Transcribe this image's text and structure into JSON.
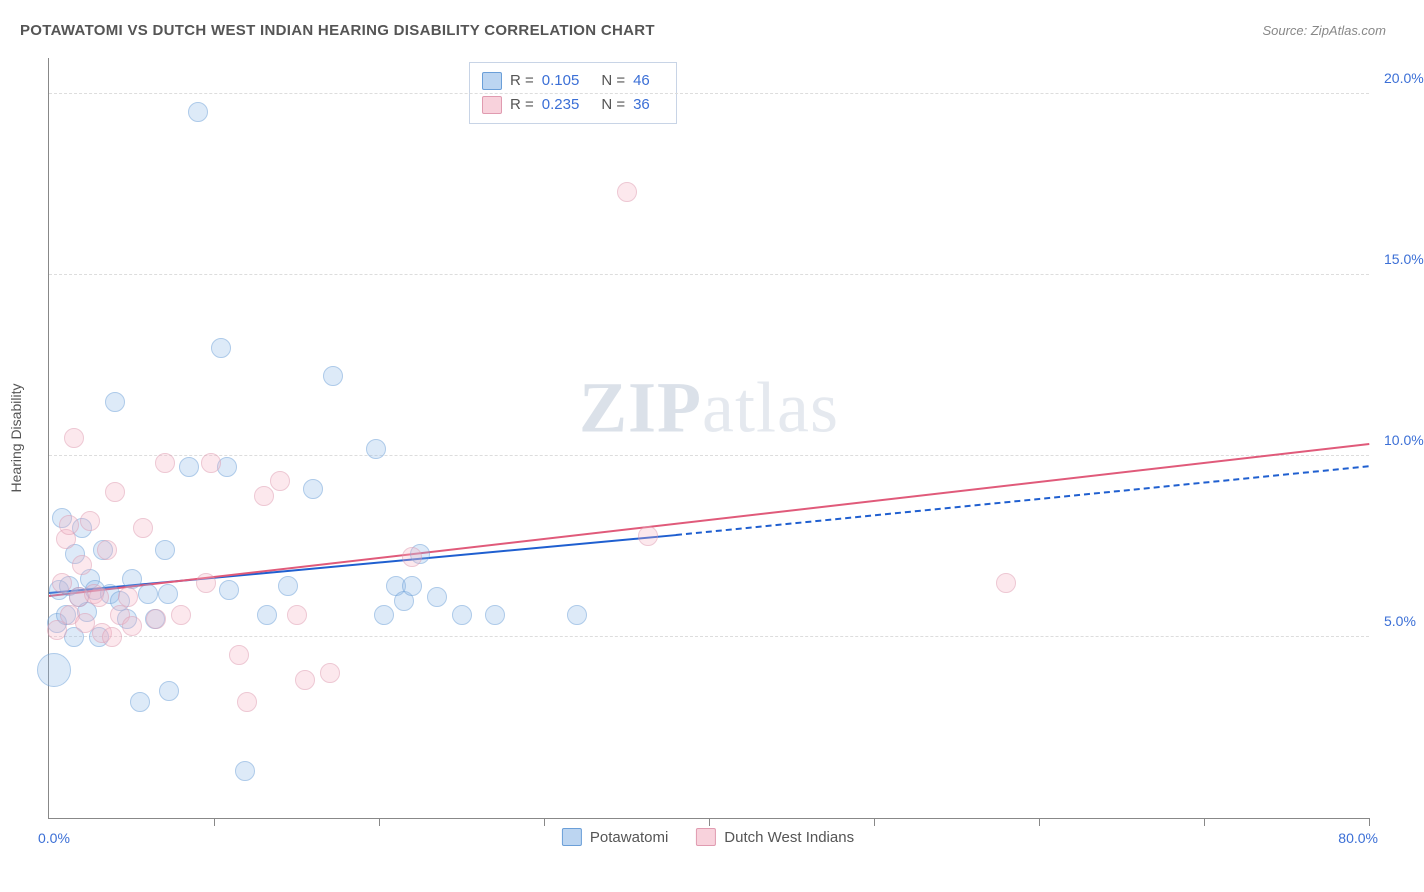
{
  "header": {
    "title": "POTAWATOMI VS DUTCH WEST INDIAN HEARING DISABILITY CORRELATION CHART",
    "source_prefix": "Source: ",
    "source_name": "ZipAtlas.com"
  },
  "watermark": {
    "bold": "ZIP",
    "rest": "atlas"
  },
  "chart": {
    "type": "scatter",
    "background_color": "#ffffff",
    "grid_color": "#dddddd",
    "axis_color": "#888888",
    "label_color": "#3b6fd6",
    "ylabel": "Hearing Disability",
    "xlim": [
      0,
      80
    ],
    "ylim": [
      0,
      21
    ],
    "x_origin_label": "0.0%",
    "x_max_label": "80.0%",
    "x_ticks": [
      10,
      20,
      30,
      40,
      50,
      60,
      70,
      80
    ],
    "y_gridlines": [
      {
        "value": 5,
        "label": "5.0%"
      },
      {
        "value": 10,
        "label": "10.0%"
      },
      {
        "value": 15,
        "label": "15.0%"
      },
      {
        "value": 20,
        "label": "20.0%"
      }
    ],
    "marker_radius": 9,
    "large_marker_radius": 16,
    "series": [
      {
        "id": "a",
        "name": "Potawatomi",
        "fill": "#8fb9e8",
        "stroke": "#6b9fd8",
        "r_value": "0.105",
        "n_value": "46",
        "trend": {
          "x1": 0,
          "y1": 6.2,
          "x2": 38,
          "y2": 7.8,
          "color": "#1f5fd0",
          "dash_x2": 80,
          "dash_y2": 9.7
        },
        "points": [
          {
            "x": 0.3,
            "y": 4.1,
            "r": 16
          },
          {
            "x": 0.5,
            "y": 5.4
          },
          {
            "x": 0.6,
            "y": 6.3
          },
          {
            "x": 0.8,
            "y": 8.3
          },
          {
            "x": 1.0,
            "y": 5.6
          },
          {
            "x": 1.2,
            "y": 6.4
          },
          {
            "x": 1.5,
            "y": 5.0
          },
          {
            "x": 1.6,
            "y": 7.3
          },
          {
            "x": 1.8,
            "y": 6.1
          },
          {
            "x": 2.0,
            "y": 8.0
          },
          {
            "x": 2.3,
            "y": 5.7
          },
          {
            "x": 2.5,
            "y": 6.6
          },
          {
            "x": 2.8,
            "y": 6.3
          },
          {
            "x": 3.0,
            "y": 5.0
          },
          {
            "x": 3.3,
            "y": 7.4
          },
          {
            "x": 3.7,
            "y": 6.2
          },
          {
            "x": 4.0,
            "y": 11.5
          },
          {
            "x": 4.3,
            "y": 6.0
          },
          {
            "x": 4.7,
            "y": 5.5
          },
          {
            "x": 5.0,
            "y": 6.6
          },
          {
            "x": 5.5,
            "y": 3.2
          },
          {
            "x": 6.0,
            "y": 6.2
          },
          {
            "x": 6.4,
            "y": 5.5
          },
          {
            "x": 7.0,
            "y": 7.4
          },
          {
            "x": 7.2,
            "y": 6.2
          },
          {
            "x": 7.3,
            "y": 3.5
          },
          {
            "x": 8.5,
            "y": 9.7
          },
          {
            "x": 9.0,
            "y": 19.5
          },
          {
            "x": 10.4,
            "y": 13.0
          },
          {
            "x": 10.8,
            "y": 9.7
          },
          {
            "x": 10.9,
            "y": 6.3
          },
          {
            "x": 11.9,
            "y": 1.3
          },
          {
            "x": 13.2,
            "y": 5.6
          },
          {
            "x": 14.5,
            "y": 6.4
          },
          {
            "x": 16.0,
            "y": 9.1
          },
          {
            "x": 17.2,
            "y": 12.2
          },
          {
            "x": 19.8,
            "y": 10.2
          },
          {
            "x": 20.3,
            "y": 5.6
          },
          {
            "x": 21.0,
            "y": 6.4
          },
          {
            "x": 21.5,
            "y": 6.0
          },
          {
            "x": 22.0,
            "y": 6.4
          },
          {
            "x": 23.5,
            "y": 6.1
          },
          {
            "x": 25.0,
            "y": 5.6
          },
          {
            "x": 27.0,
            "y": 5.6
          },
          {
            "x": 32.0,
            "y": 5.6
          },
          {
            "x": 22.5,
            "y": 7.3
          }
        ]
      },
      {
        "id": "b",
        "name": "Dutch West Indians",
        "fill": "#f4b4c4",
        "stroke": "#e09bb0",
        "r_value": "0.235",
        "n_value": "36",
        "trend": {
          "x1": 0,
          "y1": 6.1,
          "x2": 80,
          "y2": 10.3,
          "color": "#e05a7a"
        },
        "points": [
          {
            "x": 0.5,
            "y": 5.2
          },
          {
            "x": 0.8,
            "y": 6.5
          },
          {
            "x": 1.0,
            "y": 7.7
          },
          {
            "x": 1.2,
            "y": 8.1
          },
          {
            "x": 1.3,
            "y": 5.6
          },
          {
            "x": 1.5,
            "y": 10.5
          },
          {
            "x": 1.8,
            "y": 6.1
          },
          {
            "x": 2.0,
            "y": 7.0
          },
          {
            "x": 2.2,
            "y": 5.4
          },
          {
            "x": 2.5,
            "y": 8.2
          },
          {
            "x": 2.7,
            "y": 6.2
          },
          {
            "x": 3.0,
            "y": 6.1
          },
          {
            "x": 3.2,
            "y": 5.1
          },
          {
            "x": 3.5,
            "y": 7.4
          },
          {
            "x": 3.8,
            "y": 5.0
          },
          {
            "x": 4.0,
            "y": 9.0
          },
          {
            "x": 4.3,
            "y": 5.6
          },
          {
            "x": 4.8,
            "y": 6.1
          },
          {
            "x": 5.0,
            "y": 5.3
          },
          {
            "x": 5.7,
            "y": 8.0
          },
          {
            "x": 6.5,
            "y": 5.5
          },
          {
            "x": 7.0,
            "y": 9.8
          },
          {
            "x": 8.0,
            "y": 5.6
          },
          {
            "x": 9.5,
            "y": 6.5
          },
          {
            "x": 9.8,
            "y": 9.8
          },
          {
            "x": 11.5,
            "y": 4.5
          },
          {
            "x": 12.0,
            "y": 3.2
          },
          {
            "x": 13.0,
            "y": 8.9
          },
          {
            "x": 14.0,
            "y": 9.3
          },
          {
            "x": 15.0,
            "y": 5.6
          },
          {
            "x": 15.5,
            "y": 3.8
          },
          {
            "x": 17.0,
            "y": 4.0
          },
          {
            "x": 22.0,
            "y": 7.2
          },
          {
            "x": 35.0,
            "y": 17.3
          },
          {
            "x": 36.3,
            "y": 7.8
          },
          {
            "x": 58.0,
            "y": 6.5
          }
        ]
      }
    ],
    "stats_labels": {
      "r": "R =",
      "n": "N ="
    }
  }
}
